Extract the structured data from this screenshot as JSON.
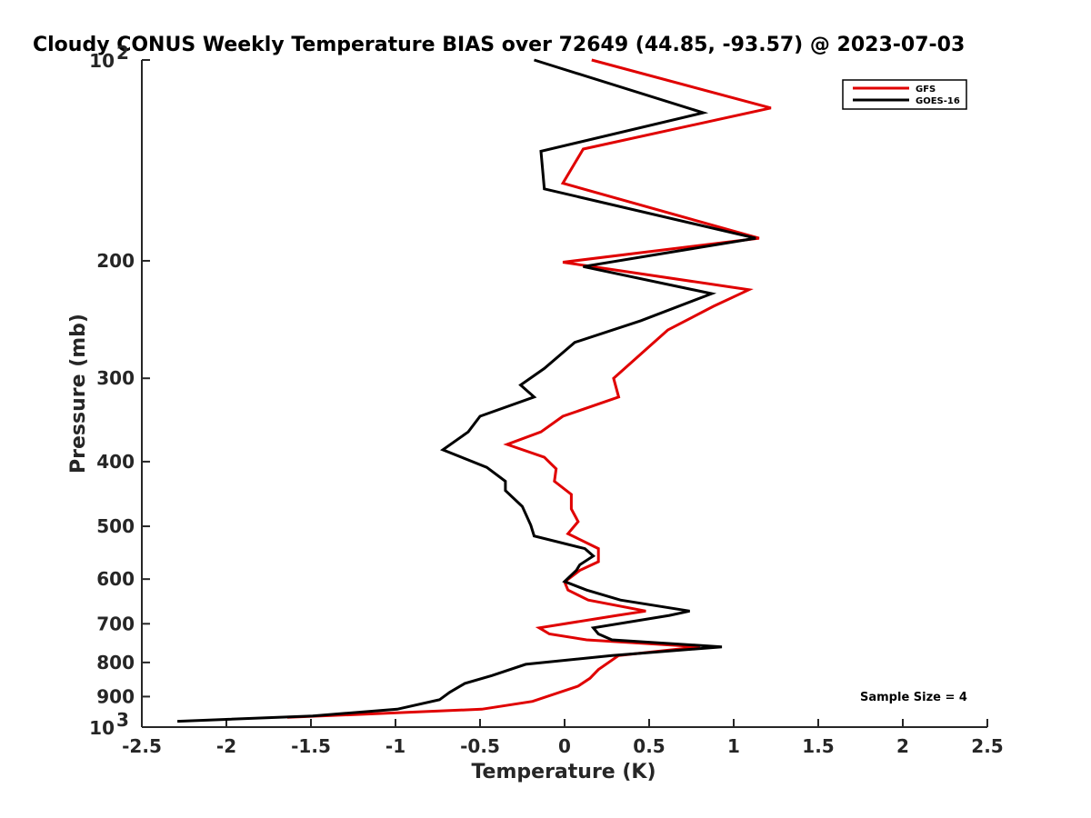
{
  "chart_data": {
    "type": "line",
    "title": "Cloudy CONUS Weekly Temperature BIAS over 72649 (44.85, -93.57) @ 2023-07-03",
    "xlabel": "Temperature (K)",
    "ylabel": "Pressure (mb)",
    "xlim": [
      -2.5,
      2.5
    ],
    "ylim": [
      100,
      1000
    ],
    "y_scale": "log",
    "y_reversed": true,
    "grid": false,
    "x_ticks": [
      "-2.5",
      "-2",
      "-1.5",
      "-1",
      "-0.5",
      "0",
      "0.5",
      "1",
      "1.5",
      "2",
      "2.5"
    ],
    "y_ticks": [
      {
        "value": 100,
        "base": "10",
        "exp": "2"
      },
      {
        "value": 200,
        "label": "200"
      },
      {
        "value": 300,
        "label": "300"
      },
      {
        "value": 400,
        "label": "400"
      },
      {
        "value": 500,
        "label": "500"
      },
      {
        "value": 600,
        "label": "600"
      },
      {
        "value": 700,
        "label": "700"
      },
      {
        "value": 800,
        "label": "800"
      },
      {
        "value": 900,
        "label": "900"
      },
      {
        "value": 1000,
        "base": "10",
        "exp": "3"
      }
    ],
    "legend_position": "top-right",
    "annotation": "Sample Size = 4",
    "series": [
      {
        "name": "GFS",
        "color": "#e00000",
        "points": [
          [
            0.16,
            100
          ],
          [
            1.22,
            118
          ],
          [
            0.11,
            136
          ],
          [
            -0.01,
            153
          ],
          [
            1.15,
            185
          ],
          [
            -0.01,
            201
          ],
          [
            1.09,
            221
          ],
          [
            0.88,
            234
          ],
          [
            0.61,
            254
          ],
          [
            0.29,
            300
          ],
          [
            0.32,
            320
          ],
          [
            -0.01,
            342
          ],
          [
            -0.14,
            361
          ],
          [
            -0.34,
            377
          ],
          [
            -0.12,
            394
          ],
          [
            -0.05,
            410
          ],
          [
            -0.06,
            428
          ],
          [
            0.04,
            448
          ],
          [
            0.04,
            471
          ],
          [
            0.08,
            492
          ],
          [
            0.02,
            513
          ],
          [
            0.2,
            540
          ],
          [
            0.2,
            565
          ],
          [
            0.09,
            582
          ],
          [
            0.0,
            606
          ],
          [
            0.02,
            623
          ],
          [
            0.14,
            645
          ],
          [
            0.48,
            670
          ],
          [
            0.31,
            680
          ],
          [
            -0.15,
            710
          ],
          [
            -0.09,
            725
          ],
          [
            0.13,
            740
          ],
          [
            0.8,
            758
          ],
          [
            0.32,
            781
          ],
          [
            0.2,
            820
          ],
          [
            0.15,
            845
          ],
          [
            0.08,
            868
          ],
          [
            -0.19,
            915
          ],
          [
            -0.49,
            940
          ],
          [
            -1.64,
            967
          ]
        ]
      },
      {
        "name": "GOES-16",
        "color": "#000000",
        "points": [
          [
            -0.18,
            100
          ],
          [
            0.82,
            120
          ],
          [
            -0.14,
            137
          ],
          [
            -0.12,
            156
          ],
          [
            1.13,
            185
          ],
          [
            0.11,
            204
          ],
          [
            0.87,
            224
          ],
          [
            0.45,
            246
          ],
          [
            0.06,
            265
          ],
          [
            -0.12,
            290
          ],
          [
            -0.26,
            307
          ],
          [
            -0.18,
            320
          ],
          [
            -0.5,
            342
          ],
          [
            -0.57,
            361
          ],
          [
            -0.72,
            384
          ],
          [
            -0.46,
            408
          ],
          [
            -0.35,
            428
          ],
          [
            -0.35,
            442
          ],
          [
            -0.25,
            467
          ],
          [
            -0.2,
            498
          ],
          [
            -0.18,
            517
          ],
          [
            0.12,
            540
          ],
          [
            0.17,
            554
          ],
          [
            0.09,
            571
          ],
          [
            0.07,
            582
          ],
          [
            0.0,
            605
          ],
          [
            0.13,
            623
          ],
          [
            0.33,
            645
          ],
          [
            0.74,
            670
          ],
          [
            0.62,
            680
          ],
          [
            0.17,
            710
          ],
          [
            0.2,
            725
          ],
          [
            0.28,
            740
          ],
          [
            0.93,
            758
          ],
          [
            0.28,
            781
          ],
          [
            -0.23,
            805
          ],
          [
            -0.43,
            837
          ],
          [
            -0.59,
            860
          ],
          [
            -0.68,
            887
          ],
          [
            -0.74,
            910
          ],
          [
            -0.99,
            940
          ],
          [
            -1.49,
            962
          ],
          [
            -2.29,
            980
          ]
        ]
      }
    ]
  }
}
